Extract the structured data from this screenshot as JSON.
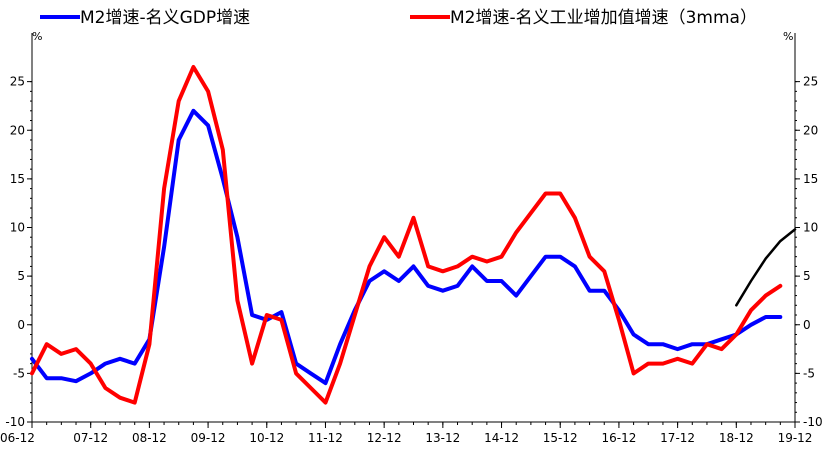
{
  "chart_data": {
    "type": "line",
    "title": "",
    "xlabel": "",
    "ylabel_left": "%",
    "ylabel_right": "%",
    "ylim": [
      -10,
      30
    ],
    "x_range": [
      "2006-12",
      "2019-12"
    ],
    "yticks": [
      -10,
      -5,
      0,
      5,
      10,
      15,
      20,
      25
    ],
    "xtick_labels": [
      "06-12",
      "07-12",
      "08-12",
      "09-12",
      "10-12",
      "11-12",
      "12-12",
      "13-12",
      "14-12",
      "15-12",
      "16-12",
      "17-12",
      "18-12",
      "19-12"
    ],
    "legend_position": "top",
    "grid": false,
    "series": [
      {
        "name": "M2增速-名义GDP增速",
        "color": "#0000ff",
        "x": [
          "2006-12",
          "2007-03",
          "2007-06",
          "2007-09",
          "2007-12",
          "2008-03",
          "2008-06",
          "2008-09",
          "2008-12",
          "2009-03",
          "2009-06",
          "2009-09",
          "2009-12",
          "2010-03",
          "2010-06",
          "2010-09",
          "2010-12",
          "2011-03",
          "2011-06",
          "2011-09",
          "2011-12",
          "2012-03",
          "2012-06",
          "2012-09",
          "2012-12",
          "2013-03",
          "2013-06",
          "2013-09",
          "2013-12",
          "2014-03",
          "2014-06",
          "2014-09",
          "2014-12",
          "2015-03",
          "2015-06",
          "2015-09",
          "2015-12",
          "2016-03",
          "2016-06",
          "2016-09",
          "2016-12",
          "2017-03",
          "2017-06",
          "2017-09",
          "2017-12",
          "2018-03",
          "2018-06",
          "2018-09",
          "2018-12",
          "2019-03",
          "2019-06",
          "2019-09"
        ],
        "values": [
          -3.5,
          -5.5,
          -5.5,
          -5.8,
          -5.0,
          -4.0,
          -3.5,
          -4.0,
          -1.5,
          8.0,
          19.0,
          22.0,
          20.5,
          15.0,
          9.0,
          1.0,
          0.5,
          1.3,
          -4.0,
          -5.0,
          -6.0,
          -2.0,
          1.5,
          4.5,
          5.5,
          4.5,
          6.0,
          4.0,
          3.5,
          4.0,
          6.0,
          4.5,
          4.5,
          3.0,
          5.0,
          7.0,
          7.0,
          6.0,
          3.5,
          3.5,
          1.5,
          -1.0,
          -2.0,
          -2.0,
          -2.5,
          -2.0,
          -2.0,
          -1.5,
          -1.0,
          0.0,
          0.8,
          0.8
        ]
      },
      {
        "name": "M2增速-名义工业增加值增速（3mma）",
        "color": "#ff0000",
        "x": [
          "2006-12",
          "2007-03",
          "2007-06",
          "2007-09",
          "2007-12",
          "2008-03",
          "2008-06",
          "2008-09",
          "2008-12",
          "2009-03",
          "2009-06",
          "2009-09",
          "2009-12",
          "2010-03",
          "2010-06",
          "2010-09",
          "2010-12",
          "2011-03",
          "2011-06",
          "2011-09",
          "2011-12",
          "2012-03",
          "2012-06",
          "2012-09",
          "2012-12",
          "2013-03",
          "2013-06",
          "2013-09",
          "2013-12",
          "2014-03",
          "2014-06",
          "2014-09",
          "2014-12",
          "2015-03",
          "2015-06",
          "2015-09",
          "2015-12",
          "2016-03",
          "2016-06",
          "2016-09",
          "2016-12",
          "2017-03",
          "2017-06",
          "2017-09",
          "2017-12",
          "2018-03",
          "2018-06",
          "2018-09",
          "2018-12",
          "2019-03",
          "2019-06",
          "2019-09"
        ],
        "values": [
          -5.0,
          -2.0,
          -3.0,
          -2.5,
          -4.0,
          -6.5,
          -7.5,
          -8.0,
          -2.0,
          14.0,
          23.0,
          26.5,
          24.0,
          18.0,
          2.5,
          -4.0,
          1.0,
          0.5,
          -5.0,
          -6.5,
          -8.0,
          -4.0,
          1.0,
          6.0,
          9.0,
          7.0,
          11.0,
          6.0,
          5.5,
          6.0,
          7.0,
          6.5,
          7.0,
          9.5,
          11.5,
          13.5,
          13.5,
          11.0,
          7.0,
          5.5,
          0.5,
          -5.0,
          -4.0,
          -4.0,
          -3.5,
          -4.0,
          -2.0,
          -2.5,
          -1.0,
          1.5,
          3.0,
          4.0
        ]
      },
      {
        "name": "",
        "color": "#000000",
        "x": [
          "2018-12",
          "2019-03",
          "2019-06",
          "2019-09",
          "2019-12"
        ],
        "values": [
          2.0,
          4.5,
          6.8,
          8.6,
          9.8
        ]
      }
    ]
  }
}
